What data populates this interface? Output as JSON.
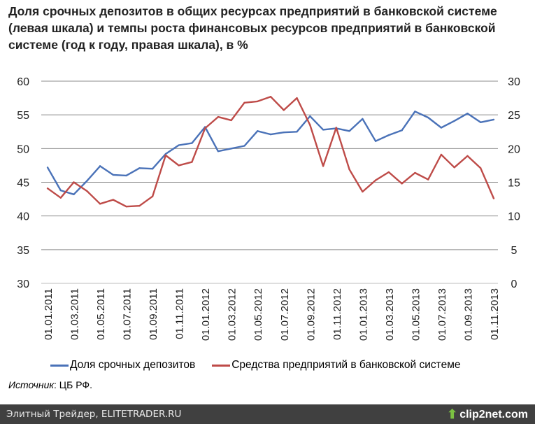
{
  "title": "Доля срочных депозитов в общих ресурсах предприятий в банковской системе (левая шкала) и темпы роста финансовых ресурсов предприятий в банковской системе (год к году, правая шкала), в %",
  "source_label": "Источник",
  "source_value": ": ЦБ РФ.",
  "footer": {
    "left": "Элитный Трейдер, ELITETRADER.RU",
    "logo": "clip2net.com"
  },
  "chart_data": {
    "type": "line",
    "title": "Доля срочных депозитов в общих ресурсах предприятий в банковской системе (левая шкала) и темпы роста финансовых ресурсов предприятий в банковской системе (год к году, правая шкала), в %",
    "x": [
      "01.01.2011",
      "01.02.2011",
      "01.03.2011",
      "01.04.2011",
      "01.05.2011",
      "01.06.2011",
      "01.07.2011",
      "01.08.2011",
      "01.09.2011",
      "01.10.2011",
      "01.11.2011",
      "01.12.2011",
      "01.01.2012",
      "01.02.2012",
      "01.03.2012",
      "01.04.2012",
      "01.05.2012",
      "01.06.2012",
      "01.07.2012",
      "01.08.2012",
      "01.09.2012",
      "01.10.2012",
      "01.11.2012",
      "01.12.2012",
      "01.01.2013",
      "01.02.2013",
      "01.03.2013",
      "01.04.2013",
      "01.05.2013",
      "01.06.2013",
      "01.07.2013",
      "01.08.2013",
      "01.09.2013",
      "01.10.2013",
      "01.11.2013"
    ],
    "x_tick_labels": [
      "01.01.2011",
      "01.03.2011",
      "01.05.2011",
      "01.07.2011",
      "01.09.2011",
      "01.11.2011",
      "01.01.2012",
      "01.03.2012",
      "01.05.2012",
      "01.07.2012",
      "01.09.2012",
      "01.11.2012",
      "01.01.2013",
      "01.03.2013",
      "01.05.2013",
      "01.07.2013",
      "01.09.2013",
      "01.11.2013"
    ],
    "y_left": {
      "ylim": [
        30,
        60
      ],
      "ticks": [
        "30",
        "35",
        "40",
        "45",
        "50",
        "55",
        "60"
      ]
    },
    "y_right": {
      "ylim": [
        0,
        30
      ],
      "ticks": [
        "0",
        "5",
        "10",
        "15",
        "20",
        "25",
        "30"
      ]
    },
    "grid": true,
    "legend_position": "bottom",
    "series": [
      {
        "name": "Доля срочных депозитов",
        "axis": "left",
        "color": "#4a72b8",
        "values": [
          47.2,
          43.8,
          43.2,
          45.2,
          47.4,
          46.1,
          46.0,
          47.1,
          47.0,
          49.2,
          50.5,
          50.8,
          53.2,
          49.6,
          50.0,
          50.4,
          52.6,
          52.1,
          52.4,
          52.5,
          54.8,
          52.8,
          53.0,
          52.6,
          54.4,
          51.1,
          52.0,
          52.7,
          55.5,
          54.6,
          53.1,
          54.1,
          55.2,
          53.9,
          54.3
        ]
      },
      {
        "name": "Средства предприятий в банковской системе",
        "axis": "right",
        "color": "#be4b48",
        "values": [
          14.1,
          12.7,
          15.0,
          13.7,
          11.8,
          12.4,
          11.4,
          11.5,
          12.9,
          19.0,
          17.5,
          18.0,
          23.0,
          24.7,
          24.2,
          26.8,
          27.0,
          27.7,
          25.7,
          27.5,
          23.5,
          17.4,
          23.1,
          16.9,
          13.6,
          15.3,
          16.5,
          14.8,
          16.4,
          15.4,
          19.1,
          17.2,
          18.9,
          17.1,
          12.6
        ]
      }
    ]
  }
}
